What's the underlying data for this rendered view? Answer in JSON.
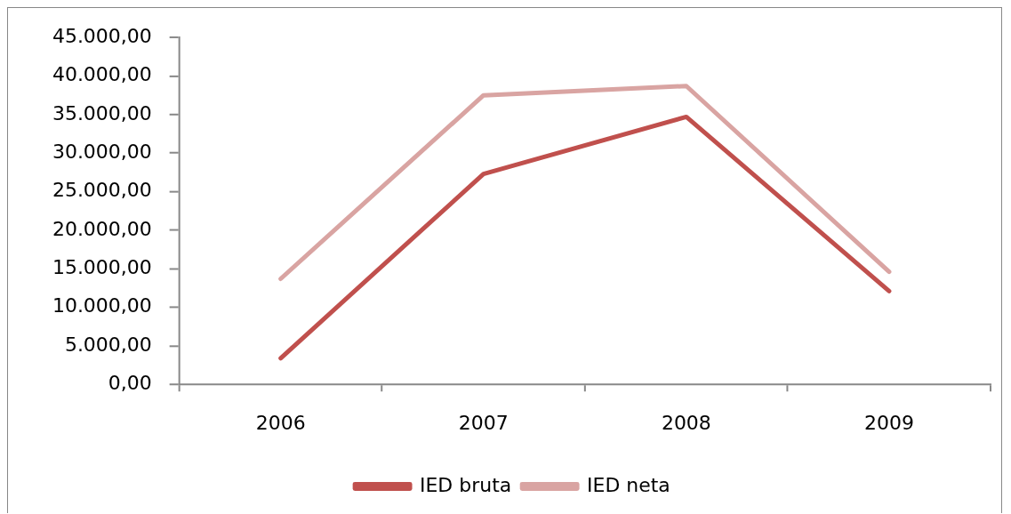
{
  "chart_data": {
    "type": "line",
    "categories": [
      "2006",
      "2007",
      "2008",
      "2009"
    ],
    "series": [
      {
        "name": "IED bruta",
        "color": "#c0504d",
        "values": [
          3400,
          27300,
          34700,
          12100
        ]
      },
      {
        "name": "IED neta",
        "color": "#d9a4a2",
        "values": [
          13700,
          37500,
          38700,
          14600
        ]
      }
    ],
    "ylim": [
      0,
      45000
    ],
    "yticks": [
      {
        "value": 0,
        "label": "0,00"
      },
      {
        "value": 5000,
        "label": "5.000,00"
      },
      {
        "value": 10000,
        "label": "10.000,00"
      },
      {
        "value": 15000,
        "label": "15.000,00"
      },
      {
        "value": 20000,
        "label": "20.000,00"
      },
      {
        "value": 25000,
        "label": "25.000,00"
      },
      {
        "value": 30000,
        "label": "30.000,00"
      },
      {
        "value": 35000,
        "label": "35.000,00"
      },
      {
        "value": 40000,
        "label": "40.000,00"
      },
      {
        "value": 45000,
        "label": "45.000,00"
      }
    ],
    "grid": false,
    "legend": "bottom",
    "line_style": "solid"
  }
}
